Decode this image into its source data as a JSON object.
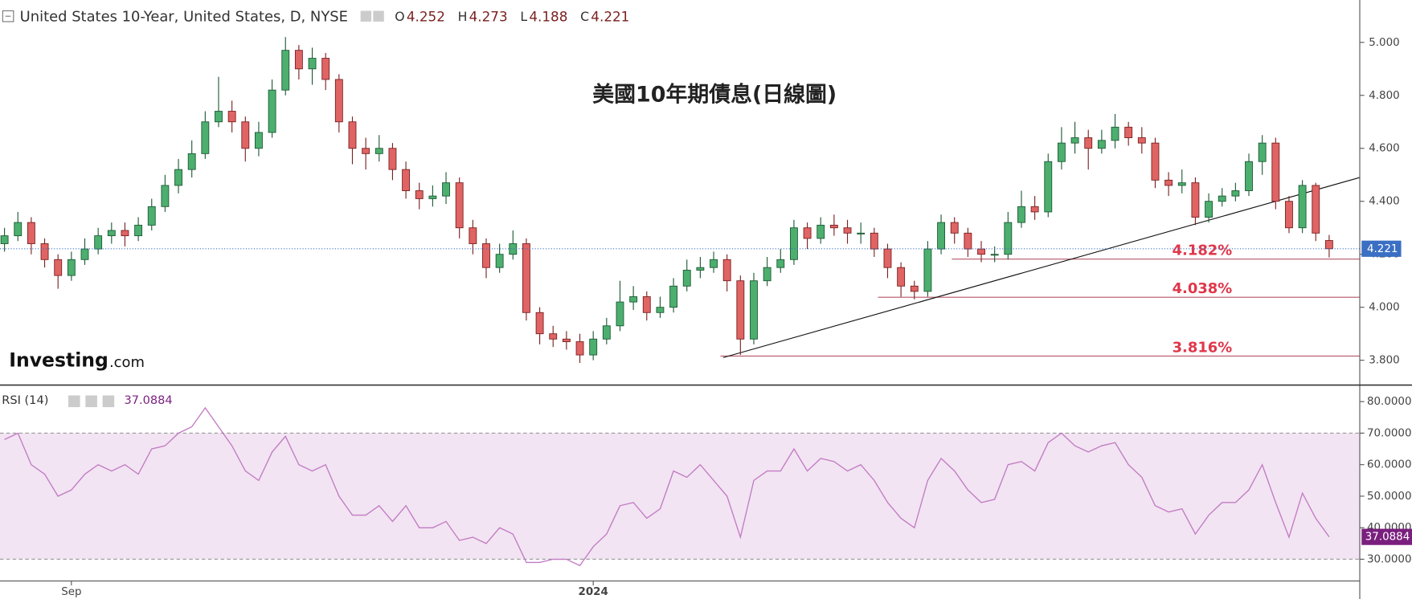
{
  "chart_data": [
    {
      "type": "candlestick",
      "header": "United States 10-Year, United States, D, NYSE",
      "ohlc_labels": [
        "O",
        "H",
        "L",
        "C"
      ],
      "title": "美國10年期債息(日線圖)",
      "logo": "Investing",
      "logo_suffix": ".com",
      "up_color": "#4caf6e",
      "down_color": "#e06464",
      "categories": [
        null,
        null,
        null,
        null,
        null,
        "Sep",
        null,
        null,
        null,
        null,
        null,
        null,
        null,
        null,
        null,
        null,
        null,
        null,
        null,
        null,
        null,
        null,
        null,
        null,
        null,
        null,
        null,
        null,
        null,
        null,
        null,
        null,
        null,
        null,
        null,
        null,
        null,
        null,
        null,
        null,
        null,
        null,
        null,
        null,
        "2024",
        null,
        null,
        null,
        null,
        null,
        null,
        null,
        null,
        null,
        null,
        null,
        null,
        null,
        null,
        null,
        null,
        null,
        null,
        null,
        null,
        null,
        null,
        null,
        null,
        null,
        null,
        null,
        null,
        null,
        null,
        null,
        null,
        null,
        null,
        null,
        null,
        null,
        null,
        null,
        null,
        null,
        null,
        null,
        null,
        null,
        null,
        null,
        null,
        null,
        null,
        null,
        null,
        null,
        null,
        null
      ],
      "open": [
        4.24,
        4.27,
        4.32,
        4.24,
        4.18,
        4.12,
        4.18,
        4.22,
        4.27,
        4.29,
        4.27,
        4.31,
        4.38,
        4.46,
        4.52,
        4.58,
        4.7,
        4.74,
        4.7,
        4.6,
        4.66,
        4.82,
        4.97,
        4.9,
        4.94,
        4.86,
        4.7,
        4.6,
        4.58,
        4.6,
        4.52,
        4.44,
        4.41,
        4.42,
        4.47,
        4.3,
        4.24,
        4.15,
        4.2,
        4.24,
        3.98,
        3.9,
        3.88,
        3.87,
        3.82,
        3.88,
        3.93,
        4.02,
        4.04,
        3.98,
        4.0,
        4.08,
        4.14,
        4.15,
        4.18,
        4.1,
        3.88,
        4.1,
        4.15,
        4.18,
        4.3,
        4.26,
        4.31,
        4.3,
        4.28,
        4.28,
        4.22,
        4.15,
        4.08,
        4.06,
        4.22,
        4.32,
        4.28,
        4.22,
        4.2,
        4.2,
        4.32,
        4.38,
        4.36,
        4.55,
        4.62,
        4.64,
        4.6,
        4.63,
        4.68,
        4.64,
        4.62,
        4.48,
        4.46,
        4.47,
        4.34,
        4.4,
        4.42,
        4.44,
        4.55,
        4.62,
        4.4,
        4.3,
        4.46,
        4.252
      ],
      "high": [
        4.3,
        4.36,
        4.34,
        4.26,
        4.2,
        4.21,
        4.26,
        4.3,
        4.32,
        4.32,
        4.34,
        4.41,
        4.5,
        4.56,
        4.63,
        4.74,
        4.87,
        4.78,
        4.72,
        4.7,
        4.86,
        5.02,
        4.99,
        4.98,
        4.96,
        4.88,
        4.72,
        4.64,
        4.65,
        4.62,
        4.55,
        4.47,
        4.46,
        4.51,
        4.49,
        4.33,
        4.26,
        4.24,
        4.29,
        4.26,
        4.0,
        3.93,
        3.91,
        3.9,
        3.91,
        3.96,
        4.1,
        4.08,
        4.06,
        4.04,
        4.11,
        4.18,
        4.19,
        4.21,
        4.2,
        4.12,
        4.13,
        4.19,
        4.22,
        4.33,
        4.32,
        4.34,
        4.35,
        4.33,
        4.32,
        4.3,
        4.24,
        4.17,
        4.1,
        4.25,
        4.35,
        4.34,
        4.3,
        4.25,
        4.23,
        4.36,
        4.44,
        4.42,
        4.58,
        4.68,
        4.7,
        4.67,
        4.67,
        4.73,
        4.7,
        4.68,
        4.64,
        4.51,
        4.52,
        4.49,
        4.43,
        4.45,
        4.47,
        4.58,
        4.65,
        4.64,
        4.42,
        4.48,
        4.47,
        4.273
      ],
      "low": [
        4.21,
        4.25,
        4.2,
        4.15,
        4.07,
        4.1,
        4.16,
        4.2,
        4.24,
        4.23,
        4.25,
        4.29,
        4.36,
        4.43,
        4.49,
        4.56,
        4.68,
        4.66,
        4.55,
        4.57,
        4.64,
        4.8,
        4.86,
        4.84,
        4.82,
        4.66,
        4.54,
        4.52,
        4.55,
        4.48,
        4.41,
        4.37,
        4.38,
        4.39,
        4.26,
        4.2,
        4.11,
        4.13,
        4.18,
        3.95,
        3.86,
        3.85,
        3.84,
        3.79,
        3.8,
        3.86,
        3.91,
        3.99,
        3.95,
        3.96,
        3.98,
        4.06,
        4.11,
        4.13,
        4.06,
        3.82,
        3.86,
        4.08,
        4.13,
        4.16,
        4.22,
        4.24,
        4.27,
        4.24,
        4.24,
        4.19,
        4.11,
        4.04,
        4.03,
        4.04,
        4.2,
        4.24,
        4.19,
        4.17,
        4.17,
        4.18,
        4.3,
        4.33,
        4.34,
        4.52,
        4.58,
        4.52,
        4.58,
        4.6,
        4.61,
        4.58,
        4.45,
        4.42,
        4.43,
        4.31,
        4.32,
        4.38,
        4.4,
        4.42,
        4.5,
        4.37,
        4.28,
        4.28,
        4.25,
        4.188
      ],
      "close": [
        4.27,
        4.32,
        4.24,
        4.18,
        4.12,
        4.18,
        4.22,
        4.27,
        4.29,
        4.27,
        4.31,
        4.38,
        4.46,
        4.52,
        4.58,
        4.7,
        4.74,
        4.7,
        4.6,
        4.66,
        4.82,
        4.97,
        4.9,
        4.94,
        4.86,
        4.7,
        4.6,
        4.58,
        4.6,
        4.52,
        4.44,
        4.41,
        4.42,
        4.47,
        4.3,
        4.24,
        4.15,
        4.2,
        4.24,
        3.98,
        3.9,
        3.88,
        3.87,
        3.82,
        3.88,
        3.93,
        4.02,
        4.04,
        3.98,
        4.0,
        4.08,
        4.14,
        4.15,
        4.18,
        4.1,
        3.88,
        4.1,
        4.15,
        4.18,
        4.3,
        4.26,
        4.31,
        4.3,
        4.28,
        4.28,
        4.22,
        4.15,
        4.08,
        4.06,
        4.22,
        4.32,
        4.28,
        4.22,
        4.2,
        4.2,
        4.32,
        4.38,
        4.36,
        4.55,
        4.62,
        4.64,
        4.6,
        4.63,
        4.68,
        4.64,
        4.62,
        4.48,
        4.46,
        4.47,
        4.34,
        4.4,
        4.42,
        4.44,
        4.55,
        4.62,
        4.4,
        4.3,
        4.46,
        4.28,
        4.221
      ],
      "ylim": [
        3.708,
        5.16
      ],
      "yticks": [
        {
          "value": 3.8,
          "label": "3.800"
        },
        {
          "value": 4.0,
          "label": "4.000"
        },
        {
          "value": 4.2,
          "label": "4.200"
        },
        {
          "value": 4.4,
          "label": "4.400"
        },
        {
          "value": 4.6,
          "label": "4.600"
        },
        {
          "value": 4.8,
          "label": "4.800"
        },
        {
          "value": 5.0,
          "label": "5.000"
        }
      ],
      "levels": [
        {
          "value": 4.182,
          "label": "4.182%"
        },
        {
          "value": 4.038,
          "label": "4.038%"
        },
        {
          "value": 3.816,
          "label": "3.816%"
        }
      ],
      "trendline": [
        3.81,
        4.49
      ]
    },
    {
      "type": "line",
      "name": "RSI (14)",
      "color": "#c27bc4",
      "values": [
        68,
        70,
        60,
        57,
        50,
        52,
        57,
        60,
        58,
        60,
        57,
        65,
        66,
        70,
        72,
        78,
        72,
        66,
        58,
        55,
        64,
        69,
        60,
        58,
        60,
        50,
        44,
        44,
        47,
        42,
        47,
        40,
        40,
        42,
        36,
        37,
        35,
        40,
        38,
        29,
        29,
        30,
        30,
        28,
        34,
        38,
        47,
        48,
        43,
        46,
        58,
        56,
        60,
        55,
        50,
        37,
        55,
        58,
        58,
        65,
        58,
        62,
        61,
        58,
        60,
        55,
        48,
        43,
        40,
        55,
        62,
        58,
        52,
        48,
        49,
        60,
        61,
        58,
        67,
        70,
        66,
        64,
        66,
        67,
        60,
        56,
        47,
        45,
        46,
        38,
        44,
        48,
        48,
        52,
        60,
        48,
        37,
        51,
        43,
        37.0884
      ],
      "ylim": [
        23.1,
        85.1
      ],
      "yticks": [
        {
          "value": 30,
          "label": "30.0000"
        },
        {
          "value": 40,
          "label": "40.0000"
        },
        {
          "value": 50,
          "label": "50.0000"
        },
        {
          "value": 60,
          "label": "60.0000"
        },
        {
          "value": 70,
          "label": "70.0000"
        },
        {
          "value": 80,
          "label": "80.0000"
        }
      ],
      "bands": [
        30,
        70
      ]
    }
  ]
}
